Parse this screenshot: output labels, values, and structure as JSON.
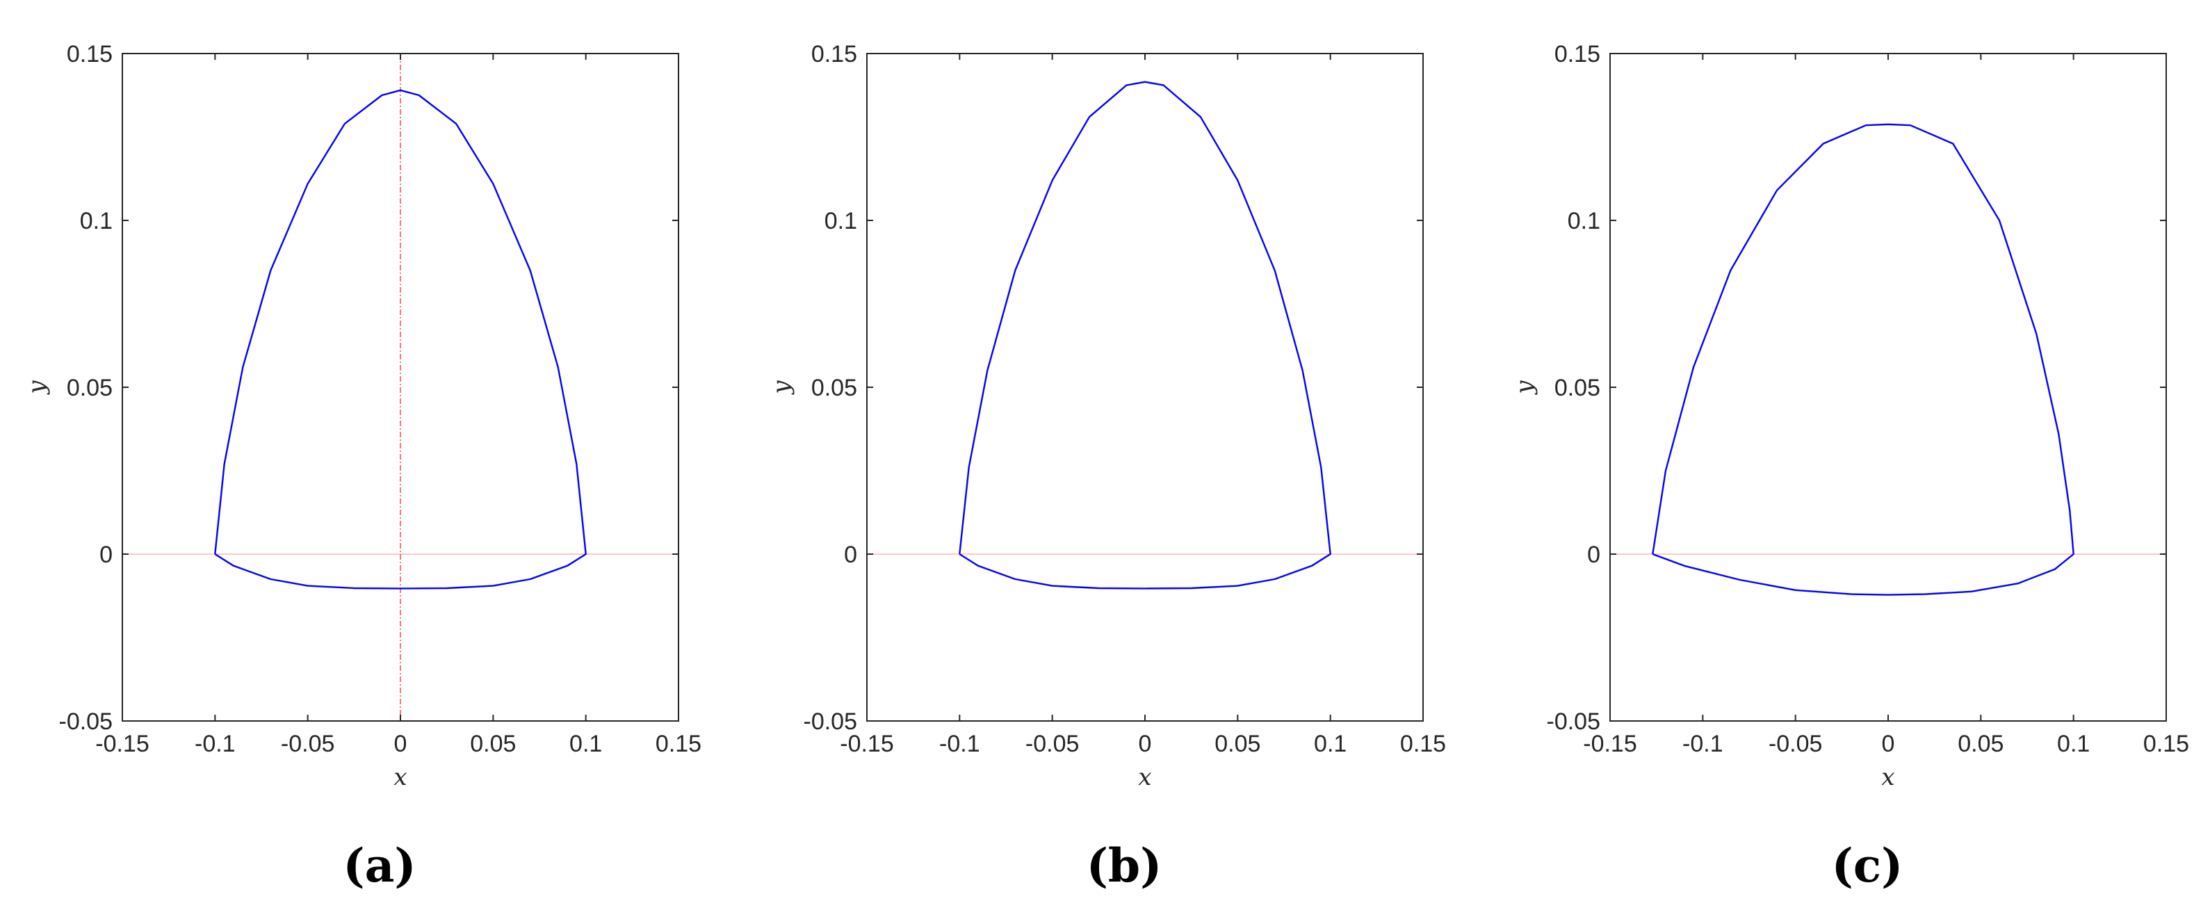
{
  "chart_data": [
    {
      "type": "line",
      "panel_label": "(a)",
      "xlabel": "x",
      "ylabel": "y",
      "xlim": [
        -0.15,
        0.15
      ],
      "ylim": [
        -0.05,
        0.15
      ],
      "xticks": [
        "-0.15",
        "-0.1",
        "-0.05",
        "0",
        "0.05",
        "0.1",
        "0.15"
      ],
      "yticks": [
        "-0.05",
        "0",
        "0.05",
        "0.1",
        "0.15"
      ],
      "grid": false,
      "reference_lines": {
        "horizontal_y0": true,
        "vertical_x0": true,
        "color": "#ff0000"
      },
      "series": [
        {
          "color": "#0000ff",
          "x": [
            -0.1,
            -0.095,
            -0.085,
            -0.07,
            -0.05,
            -0.03,
            -0.01,
            0,
            0.01,
            0.03,
            0.05,
            0.07,
            0.085,
            0.095,
            0.1,
            0.09,
            0.07,
            0.05,
            0.025,
            0,
            -0.025,
            -0.05,
            -0.07,
            -0.09,
            -0.1
          ],
          "y": [
            0,
            0.027,
            0.056,
            0.085,
            0.111,
            0.129,
            0.1375,
            0.139,
            0.1375,
            0.129,
            0.111,
            0.085,
            0.056,
            0.027,
            0,
            -0.0035,
            -0.0075,
            -0.0095,
            -0.0102,
            -0.0103,
            -0.0102,
            -0.0095,
            -0.0075,
            -0.0035,
            0
          ]
        }
      ]
    },
    {
      "type": "line",
      "panel_label": "(b)",
      "xlabel": "x",
      "ylabel": "y",
      "xlim": [
        -0.15,
        0.15
      ],
      "ylim": [
        -0.05,
        0.15
      ],
      "xticks": [
        "-0.15",
        "-0.1",
        "-0.05",
        "0",
        "0.05",
        "0.1",
        "0.15"
      ],
      "yticks": [
        "-0.05",
        "0",
        "0.05",
        "0.1",
        "0.15"
      ],
      "grid": false,
      "reference_lines": {
        "horizontal_y0": true,
        "vertical_x0": false,
        "color": "#ff0000"
      },
      "series": [
        {
          "color": "#0000ff",
          "x": [
            -0.1,
            -0.095,
            -0.085,
            -0.07,
            -0.05,
            -0.03,
            -0.01,
            0,
            0.01,
            0.03,
            0.05,
            0.07,
            0.085,
            0.095,
            0.1,
            0.09,
            0.07,
            0.05,
            0.025,
            0,
            -0.025,
            -0.05,
            -0.07,
            -0.09,
            -0.1
          ],
          "y": [
            0,
            0.026,
            0.055,
            0.085,
            0.112,
            0.131,
            0.1405,
            0.1415,
            0.1405,
            0.131,
            0.112,
            0.085,
            0.055,
            0.026,
            0,
            -0.0035,
            -0.0075,
            -0.0095,
            -0.0102,
            -0.0103,
            -0.0102,
            -0.0095,
            -0.0075,
            -0.0035,
            0
          ]
        }
      ]
    },
    {
      "type": "line",
      "panel_label": "(c)",
      "xlabel": "x",
      "ylabel": "y",
      "xlim": [
        -0.15,
        0.15
      ],
      "ylim": [
        -0.05,
        0.15
      ],
      "xticks": [
        "-0.15",
        "-0.1",
        "-0.05",
        "0",
        "0.05",
        "0.1",
        "0.15"
      ],
      "yticks": [
        "-0.05",
        "0",
        "0.05",
        "0.1",
        "0.15"
      ],
      "grid": false,
      "reference_lines": {
        "horizontal_y0": true,
        "vertical_x0": false,
        "color": "#ff0000"
      },
      "series": [
        {
          "color": "#0000ff",
          "x": [
            -0.127,
            -0.12,
            -0.105,
            -0.085,
            -0.06,
            -0.035,
            -0.012,
            0,
            0.012,
            0.035,
            0.06,
            0.08,
            0.092,
            0.098,
            0.1,
            0.09,
            0.07,
            0.045,
            0.02,
            0,
            -0.02,
            -0.05,
            -0.08,
            -0.11,
            -0.127
          ],
          "y": [
            0,
            0.025,
            0.056,
            0.085,
            0.109,
            0.123,
            0.1285,
            0.1288,
            0.1285,
            0.123,
            0.1,
            0.066,
            0.036,
            0.013,
            0,
            -0.0045,
            -0.0088,
            -0.0112,
            -0.012,
            -0.0122,
            -0.012,
            -0.0108,
            -0.0077,
            -0.0035,
            0
          ]
        }
      ]
    }
  ]
}
